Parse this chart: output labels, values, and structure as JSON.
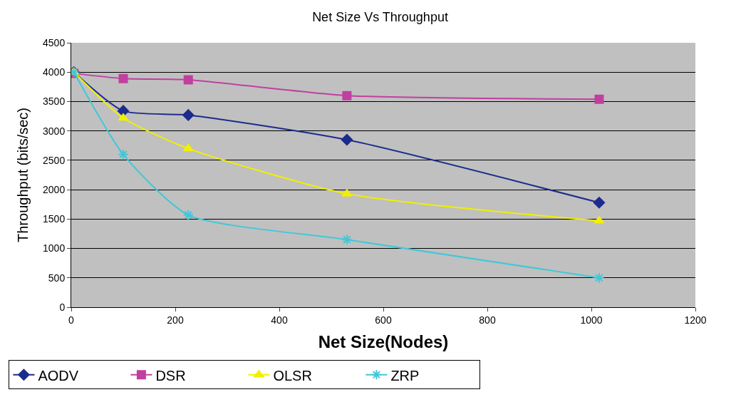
{
  "chart_data": {
    "type": "line",
    "title": "Net Size Vs Throughput",
    "xlabel": "Net Size(Nodes)",
    "ylabel": "Throughput (bits/sec)",
    "x": [
      5,
      100,
      225,
      530,
      1015
    ],
    "series": [
      {
        "name": "AODV",
        "color": "#1c2c8c",
        "marker": "diamond",
        "values": [
          4000,
          3340,
          3270,
          2850,
          1780
        ]
      },
      {
        "name": "DSR",
        "color": "#c040a0",
        "marker": "square",
        "values": [
          3980,
          3890,
          3870,
          3600,
          3540
        ]
      },
      {
        "name": "OLSR",
        "color": "#f0f000",
        "marker": "triangle",
        "values": [
          4000,
          3220,
          2700,
          1930,
          1470
        ]
      },
      {
        "name": "ZRP",
        "color": "#40c8d8",
        "marker": "cross",
        "values": [
          4000,
          2600,
          1570,
          1150,
          500
        ]
      }
    ],
    "xlim": [
      0,
      1200
    ],
    "xticks": [
      0,
      200,
      400,
      600,
      800,
      1000,
      1200
    ],
    "ylim": [
      0,
      4500
    ],
    "yticks": [
      0,
      500,
      1000,
      1500,
      2000,
      2500,
      3000,
      3500,
      4000,
      4500
    ],
    "grid": "y",
    "legend": "bottom left",
    "line_style": "solid"
  }
}
